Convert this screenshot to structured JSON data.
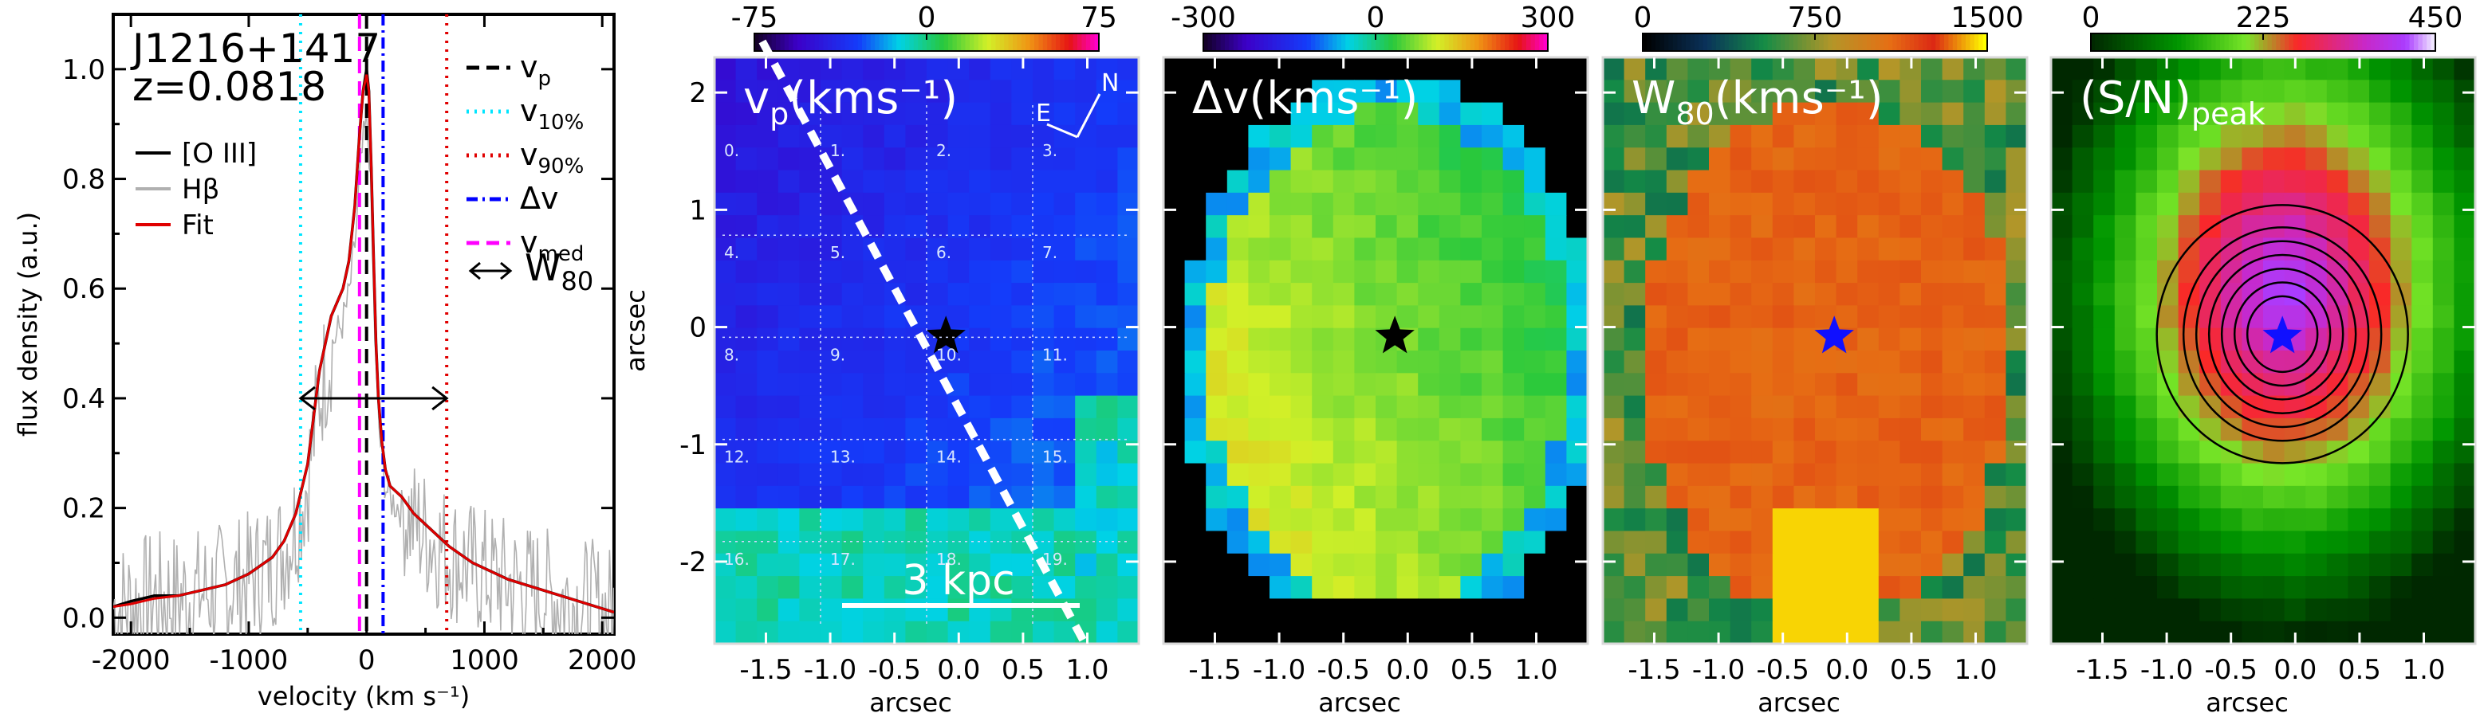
{
  "chart_data": [
    {
      "type": "line",
      "object": "J1216+1417",
      "redshift": "z=0.0818",
      "xlabel": "velocity (km s⁻¹)",
      "ylabel": "flux density (a.u.)",
      "xlim": [
        -2150,
        2100
      ],
      "ylim": [
        -0.03,
        1.1
      ],
      "xticks": [
        -2000,
        -1000,
        0,
        1000,
        2000
      ],
      "yticks": [
        "0.0",
        "0.2",
        "0.4",
        "0.6",
        "0.8",
        "1.0"
      ],
      "series": [
        {
          "name": "[O III]",
          "color": "#000000",
          "x": [
            -2150,
            -2000,
            -1800,
            -1600,
            -1400,
            -1200,
            -1000,
            -800,
            -700,
            -600,
            -500,
            -400,
            -300,
            -200,
            -150,
            -100,
            -60,
            -30,
            0,
            20,
            40,
            60,
            80,
            100,
            130,
            160,
            200,
            300,
            400,
            500,
            700,
            900,
            1200,
            1500,
            1800,
            2100
          ],
          "y": [
            0.02,
            0.03,
            0.04,
            0.04,
            0.05,
            0.06,
            0.08,
            0.11,
            0.14,
            0.19,
            0.28,
            0.45,
            0.55,
            0.6,
            0.65,
            0.75,
            0.88,
            0.96,
            1.0,
            0.96,
            0.82,
            0.65,
            0.5,
            0.4,
            0.32,
            0.27,
            0.24,
            0.22,
            0.19,
            0.17,
            0.13,
            0.1,
            0.07,
            0.05,
            0.03,
            0.01
          ]
        },
        {
          "name": "Hβ",
          "color": "#b0b0b0"
        },
        {
          "name": "Fit",
          "color": "#e00000",
          "x": [
            -2150,
            -2000,
            -1800,
            -1600,
            -1400,
            -1200,
            -1000,
            -800,
            -700,
            -600,
            -500,
            -400,
            -300,
            -200,
            -150,
            -100,
            -60,
            -30,
            0,
            20,
            40,
            60,
            80,
            100,
            130,
            160,
            200,
            300,
            400,
            500,
            700,
            900,
            1200,
            1500,
            1800,
            2100
          ],
          "y": [
            0.02,
            0.025,
            0.035,
            0.04,
            0.05,
            0.06,
            0.08,
            0.11,
            0.14,
            0.19,
            0.28,
            0.45,
            0.55,
            0.6,
            0.65,
            0.75,
            0.88,
            0.96,
            0.99,
            0.96,
            0.82,
            0.65,
            0.5,
            0.4,
            0.32,
            0.27,
            0.24,
            0.22,
            0.19,
            0.17,
            0.13,
            0.1,
            0.07,
            0.05,
            0.03,
            0.01
          ]
        }
      ],
      "vlines": [
        {
          "name": "v_p",
          "x": 0,
          "color": "#000000",
          "style": "dash"
        },
        {
          "name": "v_10%",
          "x": -560,
          "color": "#00e5ff",
          "style": "dot"
        },
        {
          "name": "v_90%",
          "x": 680,
          "color": "#e00000",
          "style": "dot"
        },
        {
          "name": "Δv",
          "x": 140,
          "color": "#0000ff",
          "style": "dashdot"
        },
        {
          "name": "v_med",
          "x": -60,
          "color": "#ff00ff",
          "style": "dash"
        }
      ],
      "w80_arrow": {
        "name": "W80",
        "x_start": -560,
        "x_end": 680,
        "y": 0.4
      },
      "legend_left": [
        "[O III]",
        "Hβ",
        "Fit"
      ],
      "legend_right": [
        "v_p",
        "v_10%",
        "v_90%",
        "Δv",
        "v_med",
        "W80"
      ],
      "legend_labels": {
        "vp": "v",
        "vp_sub": "p",
        "v10": "v",
        "v10_sub": "10%",
        "v90": "v",
        "v90_sub": "90%",
        "dv": "Δv",
        "vmed": "v",
        "vmed_sub": "med",
        "w80": "W",
        "w80_sub": "80"
      }
    },
    {
      "type": "heatmap",
      "label": "v",
      "label_sub": "p",
      "label_unit": "(kms⁻¹)",
      "colorbar_ticks": [
        "-75",
        "0",
        "75"
      ],
      "colormap": "rainbow",
      "xlabel": "arcsec",
      "ylabel": "arcsec",
      "xticks": [
        "-1.5",
        "-1.0",
        "-0.5",
        "0.0",
        "0.5",
        "1.0"
      ],
      "yticks": [
        "2",
        "1",
        "0",
        "-1",
        "-2"
      ],
      "compass": [
        "E",
        "N"
      ],
      "scalebar": "3 kpc",
      "star": {
        "color": "#000000",
        "x": -0.1,
        "y": -0.08
      },
      "slit_angle": "diagonal",
      "grid_numbers": [
        "0.",
        "1.",
        "2.",
        "3.",
        "4.",
        "5.",
        "6.",
        "7.",
        "8.",
        "9.",
        "10.",
        "11.",
        "12.",
        "13.",
        "14.",
        "15.",
        "16.",
        "17.",
        "18.",
        "19."
      ]
    },
    {
      "type": "heatmap",
      "label": "Δv",
      "label_unit": "(kms⁻¹)",
      "colorbar_ticks": [
        "-300",
        "0",
        "300"
      ],
      "colormap": "rainbow",
      "xlabel": "arcsec",
      "xticks": [
        "-1.5",
        "-1.0",
        "-0.5",
        "0.0",
        "0.5",
        "1.0"
      ],
      "star": {
        "color": "#000000",
        "x": -0.1,
        "y": -0.08
      }
    },
    {
      "type": "heatmap",
      "label": "W",
      "label_sub": "80",
      "label_unit": "(kms⁻¹)",
      "colorbar_ticks": [
        "0",
        "750",
        "1500"
      ],
      "colormap": "green-red-yellow",
      "xlabel": "arcsec",
      "xticks": [
        "-1.5",
        "-1.0",
        "-0.5",
        "0.0",
        "0.5",
        "1.0"
      ],
      "star": {
        "color": "#1010ff",
        "x": -0.1,
        "y": -0.08
      }
    },
    {
      "type": "heatmap",
      "label": "(S/N)",
      "label_sub": "peak",
      "colorbar_ticks": [
        "0",
        "225",
        "450"
      ],
      "colormap": "green-red-purple",
      "xlabel": "arcsec",
      "xticks": [
        "-1.5",
        "-1.0",
        "-0.5",
        "0.0",
        "0.5",
        "1.0"
      ],
      "star": {
        "color": "#1010ff",
        "x": -0.1,
        "y": -0.08
      },
      "contours": true
    }
  ]
}
